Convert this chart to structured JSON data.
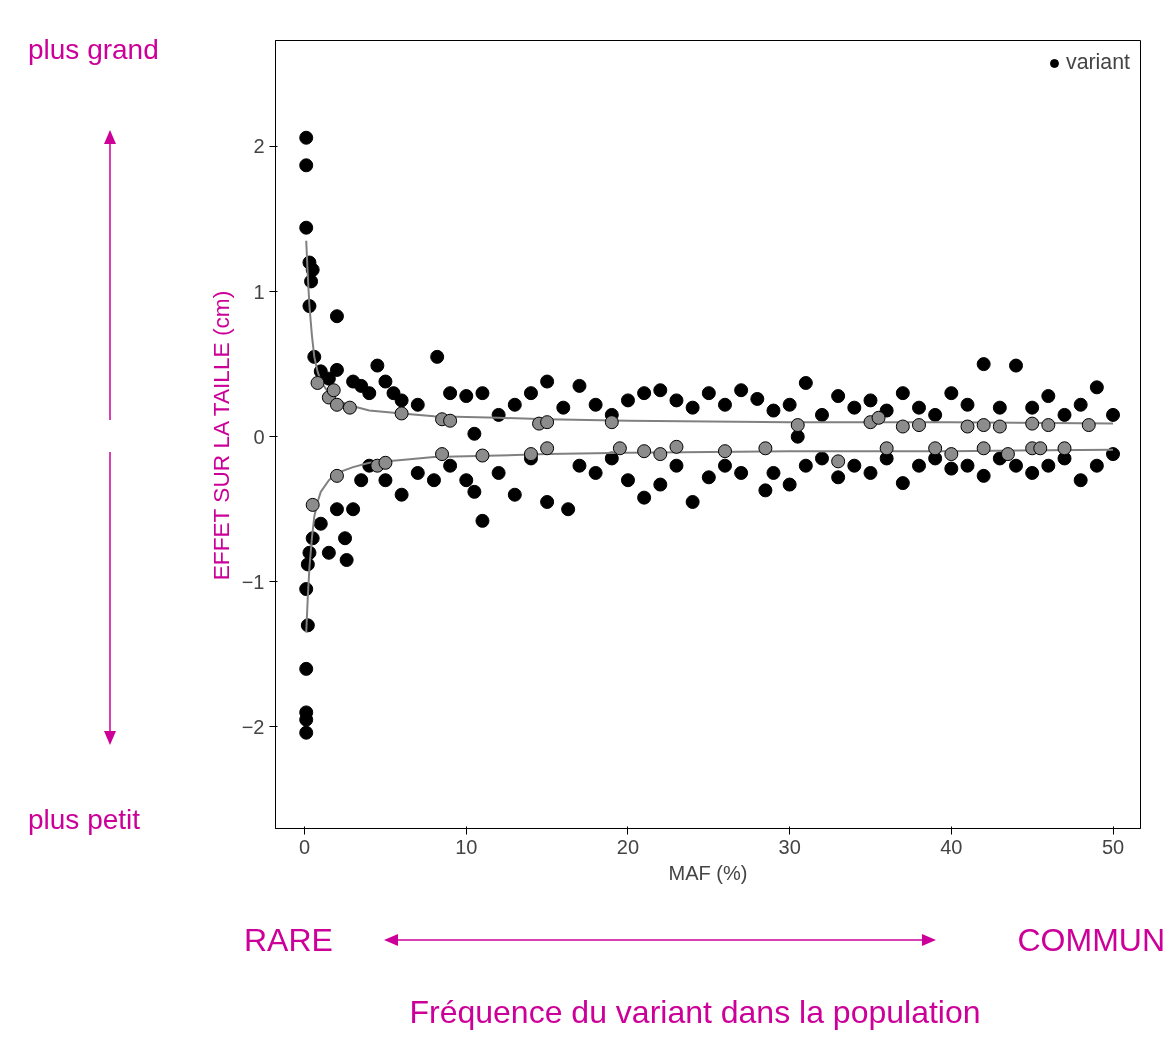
{
  "chart_data": {
    "type": "scatter",
    "xlabel": "MAF (%)",
    "ylabel": "EFFET SUR LA TAILLE (cm)",
    "xlim": [
      -1.8,
      51.7
    ],
    "ylim": [
      -2.7,
      2.73
    ],
    "xticks": [
      0,
      10,
      20,
      30,
      40,
      50
    ],
    "yticks": [
      -2,
      -1,
      0,
      1,
      2
    ],
    "grid": false,
    "legend": "top right",
    "annotations": [
      "plus grand",
      "plus petit",
      "RARE",
      "COMMUN",
      "Fréquence du variant dans la population"
    ],
    "series": [
      {
        "name": "variant",
        "marker": "circle",
        "color": "#000000",
        "x": [
          0.1,
          0.1,
          0.1,
          0.3,
          0.5,
          0.4,
          0.3,
          2,
          0.6,
          1,
          1.5,
          2,
          3,
          3.5,
          4,
          4.5,
          5,
          5.5,
          6,
          7,
          8.2,
          9,
          10,
          11,
          12,
          13,
          14,
          15,
          16,
          17,
          18,
          19,
          20,
          21,
          22,
          23,
          24,
          25,
          26,
          27,
          28,
          29,
          30,
          31,
          32,
          33,
          34,
          35,
          36,
          37,
          38,
          39,
          40,
          41,
          42,
          43,
          44,
          45,
          46,
          47,
          48,
          49,
          50,
          10.5,
          30.5,
          0.1,
          0.1,
          0.1,
          0.1,
          0.2,
          0.1,
          0.2,
          0.3,
          0.5,
          1,
          1.5,
          2,
          2.5,
          2.6,
          3,
          3.5,
          4,
          5,
          6,
          7,
          8,
          9,
          10,
          10.5,
          11,
          12,
          13,
          14,
          15,
          16.3,
          17,
          18,
          19,
          20,
          21,
          22,
          23,
          24,
          25,
          26,
          27,
          28.5,
          29,
          30,
          31,
          32,
          33,
          34,
          35,
          36,
          37,
          38,
          39,
          40,
          41,
          42,
          43,
          44,
          45,
          46,
          47,
          48,
          49,
          50
        ],
        "values": [
          2.06,
          1.87,
          1.44,
          1.2,
          1.15,
          1.07,
          0.9,
          0.83,
          0.55,
          0.45,
          0.4,
          0.46,
          0.38,
          0.35,
          0.3,
          0.49,
          0.38,
          0.3,
          0.25,
          0.22,
          0.55,
          0.3,
          0.28,
          0.3,
          0.15,
          0.22,
          0.3,
          0.38,
          0.2,
          0.35,
          0.22,
          0.15,
          0.25,
          0.3,
          0.32,
          0.25,
          0.2,
          0.3,
          0.22,
          0.32,
          0.26,
          0.18,
          0.22,
          0.37,
          0.15,
          0.28,
          0.2,
          0.25,
          0.18,
          0.3,
          0.2,
          0.15,
          0.3,
          0.22,
          0.5,
          0.2,
          0.49,
          0.2,
          0.28,
          0.15,
          0.22,
          0.34,
          0.15,
          0.02,
          0.0,
          -2.04,
          -1.95,
          -1.9,
          -1.6,
          -1.3,
          -1.05,
          -0.88,
          -0.8,
          -0.7,
          -0.6,
          -0.8,
          -0.5,
          -0.7,
          -0.85,
          -0.5,
          -0.3,
          -0.2,
          -0.3,
          -0.4,
          -0.25,
          -0.3,
          -0.2,
          -0.3,
          -0.38,
          -0.58,
          -0.25,
          -0.4,
          -0.15,
          -0.45,
          -0.5,
          -0.2,
          -0.25,
          -0.15,
          -0.3,
          -0.42,
          -0.33,
          -0.2,
          -0.45,
          -0.28,
          -0.2,
          -0.25,
          -0.37,
          -0.25,
          -0.33,
          -0.2,
          -0.15,
          -0.28,
          -0.2,
          -0.25,
          -0.15,
          -0.32,
          -0.2,
          -0.15,
          -0.22,
          -0.2,
          -0.27,
          -0.15,
          -0.2,
          -0.25,
          -0.2,
          -0.15,
          -0.3,
          -0.2,
          -0.12
        ]
      },
      {
        "type": "line",
        "color": "#808080",
        "x": [
          0.1,
          0.2,
          0.3,
          0.45,
          0.6,
          0.8,
          1,
          1.5,
          2,
          3,
          4,
          6,
          8,
          12,
          15,
          20,
          30,
          40,
          50
        ],
        "values": [
          1.35,
          1.1,
          0.9,
          0.7,
          0.55,
          0.45,
          0.38,
          0.3,
          0.25,
          0.21,
          0.18,
          0.16,
          0.14,
          0.13,
          0.12,
          0.11,
          0.1,
          0.1,
          0.09
        ]
      },
      {
        "type": "line",
        "color": "#808080",
        "x": [
          0.1,
          0.2,
          0.3,
          0.45,
          0.6,
          0.8,
          1,
          1.5,
          2,
          3,
          4,
          6,
          8,
          12,
          15,
          20,
          30,
          40,
          50
        ],
        "values": [
          -1.35,
          -1.1,
          -0.9,
          -0.7,
          -0.55,
          -0.45,
          -0.38,
          -0.3,
          -0.25,
          -0.21,
          -0.18,
          -0.16,
          -0.14,
          -0.13,
          -0.12,
          -0.11,
          -0.1,
          -0.1,
          -0.09
        ]
      },
      {
        "marker": "circle",
        "color": "#8c8c8c",
        "x": [
          0.8,
          1.5,
          1.8,
          2,
          2.8,
          6,
          8.5,
          9,
          14.5,
          15,
          19,
          30.5,
          35,
          35.5,
          37,
          38,
          41,
          42,
          43,
          45,
          46,
          48.5,
          0.5,
          2,
          4.5,
          5,
          8.5,
          11,
          14,
          15,
          19.5,
          21,
          22,
          23,
          26,
          28.5,
          33,
          36,
          39,
          40,
          42,
          43.5,
          45,
          45.5,
          47
        ],
        "values": [
          0.37,
          0.27,
          0.32,
          0.22,
          0.2,
          0.16,
          0.12,
          0.11,
          0.09,
          0.1,
          0.1,
          0.08,
          0.1,
          0.13,
          0.07,
          0.08,
          0.07,
          0.08,
          0.07,
          0.09,
          0.08,
          0.08,
          -0.47,
          -0.27,
          -0.2,
          -0.18,
          -0.12,
          -0.13,
          -0.12,
          -0.08,
          -0.08,
          -0.1,
          -0.12,
          -0.07,
          -0.1,
          -0.08,
          -0.17,
          -0.08,
          -0.08,
          -0.12,
          -0.08,
          -0.12,
          -0.08,
          -0.08,
          -0.08
        ]
      }
    ]
  }
}
